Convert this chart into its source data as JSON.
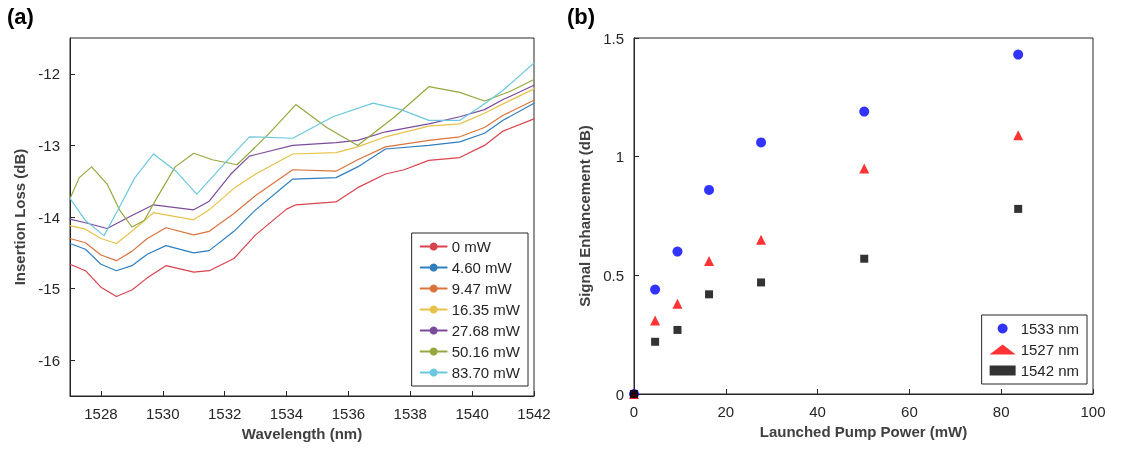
{
  "chart_data": [
    {
      "type": "line",
      "title": "(a)",
      "xlabel": "Wavelength (nm)",
      "ylabel": "Insertion Loss (dB)",
      "xlim": [
        1527,
        1542
      ],
      "xticks": [
        1528,
        1530,
        1532,
        1534,
        1536,
        1538,
        1540,
        1542
      ],
      "ylim": [
        -16.5,
        -11.5
      ],
      "yticks": [
        -16,
        -15,
        -14,
        -13,
        -12
      ],
      "grid": false,
      "legend": "bottom right",
      "marker": "none",
      "line_style": "solid",
      "series": [
        {
          "name": "0 mW",
          "color": "#d9434e",
          "x": [
            1527,
            1527.5,
            1528,
            1528.5,
            1529,
            1529.5,
            1530.1,
            1531,
            1531.5,
            1532.3,
            1533,
            1534,
            1534.3,
            1535.6,
            1536.3,
            1537.2,
            1537.8,
            1538.6,
            1539.6,
            1540.4,
            1541,
            1542
          ],
          "values": [
            -14.66,
            -14.75,
            -14.98,
            -15.11,
            -15.02,
            -14.85,
            -14.68,
            -14.77,
            -14.75,
            -14.58,
            -14.25,
            -13.89,
            -13.83,
            -13.79,
            -13.59,
            -13.4,
            -13.34,
            -13.21,
            -13.17,
            -13,
            -12.8,
            -12.63
          ]
        },
        {
          "name": "4.60 mW",
          "color": "#2f7fbf",
          "x": [
            1527,
            1527.5,
            1528,
            1528.5,
            1529,
            1529.5,
            1530.1,
            1531,
            1531.5,
            1532.3,
            1533,
            1534.2,
            1535.6,
            1536.3,
            1537.2,
            1538.6,
            1539.6,
            1540.4,
            1541,
            1542
          ],
          "values": [
            -14.37,
            -14.45,
            -14.66,
            -14.75,
            -14.68,
            -14.52,
            -14.4,
            -14.5,
            -14.47,
            -14.2,
            -13.9,
            -13.47,
            -13.45,
            -13.3,
            -13.05,
            -13,
            -12.95,
            -12.83,
            -12.65,
            -12.41
          ]
        },
        {
          "name": "9.47 mW",
          "color": "#d9743f",
          "x": [
            1527,
            1527.5,
            1528,
            1528.5,
            1529,
            1529.5,
            1530.1,
            1531,
            1531.5,
            1532.3,
            1533,
            1534.2,
            1535.6,
            1536.3,
            1537.2,
            1538.6,
            1539.6,
            1540.4,
            1541,
            1542
          ],
          "values": [
            -14.3,
            -14.36,
            -14.53,
            -14.61,
            -14.48,
            -14.3,
            -14.15,
            -14.25,
            -14.2,
            -13.95,
            -13.7,
            -13.34,
            -13.36,
            -13.2,
            -13.02,
            -12.93,
            -12.88,
            -12.75,
            -12.58,
            -12.37
          ]
        },
        {
          "name": "16.35 mW",
          "color": "#e6c24a",
          "x": [
            1527,
            1527.5,
            1528,
            1528.5,
            1529,
            1529.7,
            1531,
            1531.5,
            1532.3,
            1533,
            1534.2,
            1535.6,
            1536.3,
            1537.2,
            1538.6,
            1539.6,
            1540.4,
            1541,
            1542
          ],
          "values": [
            -14.12,
            -14.17,
            -14.3,
            -14.37,
            -14.2,
            -13.94,
            -14.04,
            -13.9,
            -13.6,
            -13.4,
            -13.12,
            -13.1,
            -13.02,
            -12.88,
            -12.73,
            -12.7,
            -12.55,
            -12.42,
            -12.21
          ]
        },
        {
          "name": "27.68 mW",
          "color": "#7b4b9c",
          "x": [
            1527,
            1527.5,
            1528.2,
            1529,
            1529.7,
            1531,
            1531.5,
            1532.2,
            1532.8,
            1534.2,
            1535.6,
            1536.3,
            1537.2,
            1538.6,
            1539.6,
            1540.4,
            1541,
            1542
          ],
          "values": [
            -14.03,
            -14.08,
            -14.16,
            -13.98,
            -13.83,
            -13.9,
            -13.78,
            -13.4,
            -13.15,
            -13,
            -12.96,
            -12.93,
            -12.81,
            -12.7,
            -12.6,
            -12.5,
            -12.36,
            -12.16
          ]
        },
        {
          "name": "50.16 mW",
          "color": "#94a83f",
          "x": [
            1527,
            1527.3,
            1527.7,
            1528.2,
            1528.6,
            1529,
            1529.4,
            1529.8,
            1530.4,
            1531,
            1531.6,
            1532.4,
            1533.4,
            1534.3,
            1535.3,
            1536.3,
            1537.5,
            1538.6,
            1539.6,
            1540.4,
            1541.2,
            1542
          ],
          "values": [
            -13.74,
            -13.45,
            -13.3,
            -13.54,
            -13.9,
            -14.14,
            -14.05,
            -13.74,
            -13.3,
            -13.11,
            -13.2,
            -13.27,
            -12.85,
            -12.43,
            -12.75,
            -13,
            -12.6,
            -12.18,
            -12.26,
            -12.38,
            -12.25,
            -12.08
          ]
        },
        {
          "name": "83.70 mW",
          "color": "#6cc8de",
          "x": [
            1527,
            1527.5,
            1528.1,
            1528.5,
            1529.1,
            1529.7,
            1530.4,
            1531.1,
            1532,
            1532.8,
            1534.2,
            1535.5,
            1536.8,
            1537.7,
            1538.6,
            1539.6,
            1540.3,
            1541,
            1542
          ],
          "values": [
            -13.74,
            -14.05,
            -14.26,
            -13.94,
            -13.45,
            -13.12,
            -13.35,
            -13.68,
            -13.25,
            -12.88,
            -12.9,
            -12.6,
            -12.41,
            -12.5,
            -12.65,
            -12.65,
            -12.45,
            -12.23,
            -11.85
          ]
        }
      ]
    },
    {
      "type": "scatter",
      "title": "(b)",
      "xlabel": "Launched Pump Power (mW)",
      "ylabel": "Signal Enhancement (dB)",
      "xlim": [
        0,
        100
      ],
      "xticks": [
        0,
        20,
        40,
        60,
        80,
        100
      ],
      "ylim": [
        0,
        1.5
      ],
      "yticks": [
        0,
        0.5,
        1,
        1.5
      ],
      "grid": false,
      "legend": "bottom right",
      "x": [
        0,
        4.6,
        9.47,
        16.35,
        27.68,
        50.16,
        83.7
      ],
      "series": [
        {
          "name": "1533 nm",
          "color": "#0000ff",
          "marker": "circle",
          "values": [
            0,
            0.44,
            0.6,
            0.86,
            1.06,
            1.19,
            1.43
          ]
        },
        {
          "name": "1527 nm",
          "color": "#ff0000",
          "marker": "triangle",
          "values": [
            0,
            0.31,
            0.38,
            0.56,
            0.65,
            0.95,
            1.09
          ]
        },
        {
          "name": "1542 nm",
          "color": "#000000",
          "marker": "square",
          "values": [
            0,
            0.22,
            0.27,
            0.42,
            0.47,
            0.57,
            0.78
          ]
        }
      ]
    }
  ]
}
